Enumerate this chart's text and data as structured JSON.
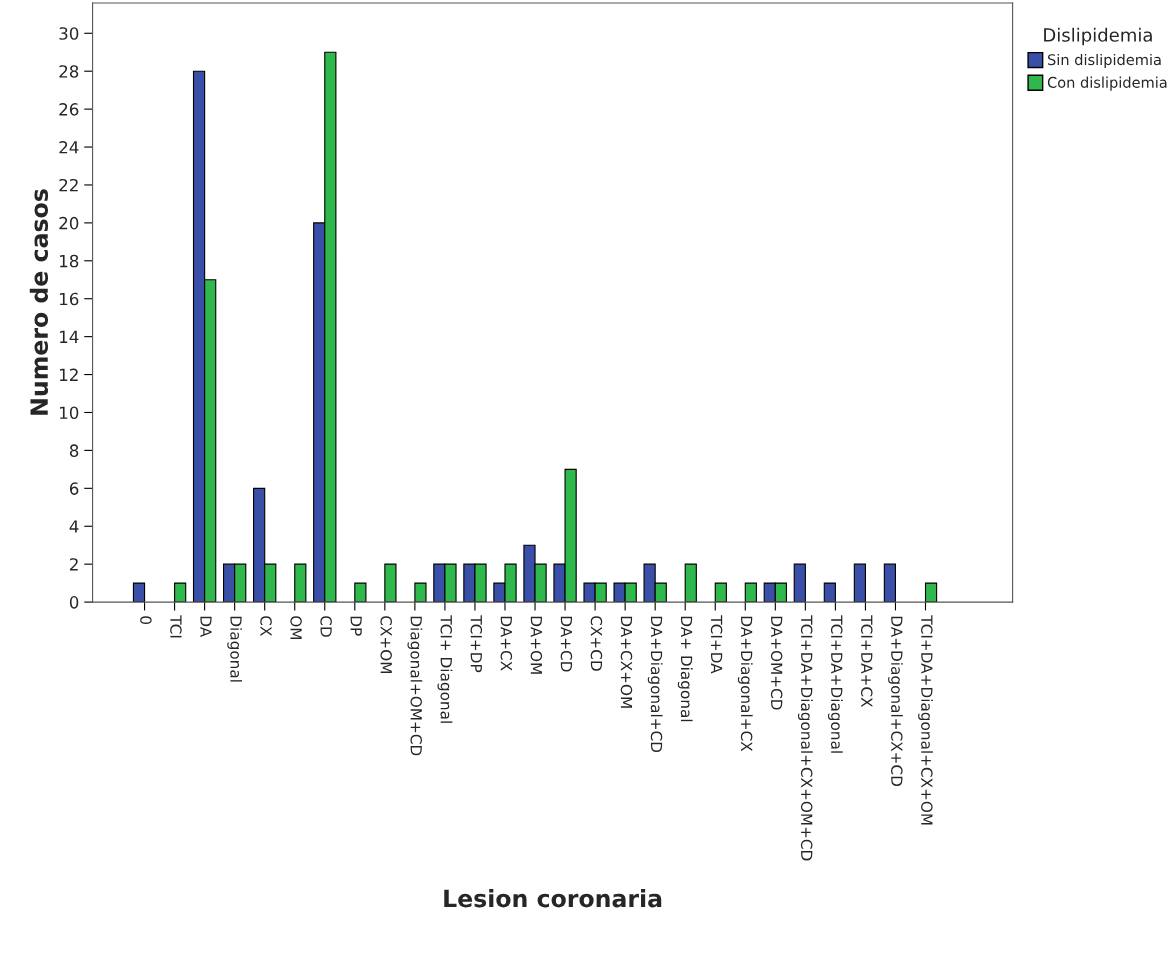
{
  "chart_data": {
    "type": "bar",
    "xlabel": "Lesion coronaria",
    "ylabel": "Numero de casos",
    "legend_title": "Dislipidemia",
    "legend": "top right",
    "categories": [
      "0",
      "TCI",
      "DA",
      "Diagonal",
      "CX",
      "OM",
      "CD",
      "DP",
      "CX+OM",
      "Diagonal+OM+CD",
      "TCI+ Diagonal",
      "TCI+DP",
      "DA+CX",
      "DA+OM",
      "DA+CD",
      "CX+CD",
      "DA+CX+OM",
      "DA+Diagonal+CD",
      "DA+ Diagonal",
      "TCI+DA",
      "DA+Diagonal+CX",
      "DA+OM+CD",
      "TCI+DA+Diagonal+CX+OM+CD",
      "TCI+DA+Diagonal",
      "TCI+DA+CX",
      "DA+Diagonal+CX+CD",
      "TCI+DA+Diagonal+CX+OM"
    ],
    "series": [
      {
        "name": "Sin dislipidemia",
        "color": "#3a50a8",
        "values": [
          1,
          0,
          28,
          2,
          6,
          0,
          20,
          0,
          0,
          0,
          2,
          2,
          1,
          3,
          2,
          1,
          1,
          2,
          0,
          0,
          0,
          1,
          2,
          1,
          2,
          2,
          0
        ]
      },
      {
        "name": "Con dislipidemia",
        "color": "#2fb84c",
        "values": [
          0,
          1,
          17,
          2,
          2,
          2,
          29,
          1,
          2,
          1,
          2,
          2,
          2,
          2,
          7,
          1,
          1,
          1,
          2,
          1,
          1,
          1,
          0,
          0,
          0,
          0,
          1
        ]
      }
    ],
    "ylim": [
      0,
      31.6
    ],
    "yticks": [
      0,
      2,
      4,
      6,
      8,
      10,
      12,
      14,
      16,
      18,
      20,
      22,
      24,
      26,
      28,
      30
    ],
    "grid": false
  }
}
